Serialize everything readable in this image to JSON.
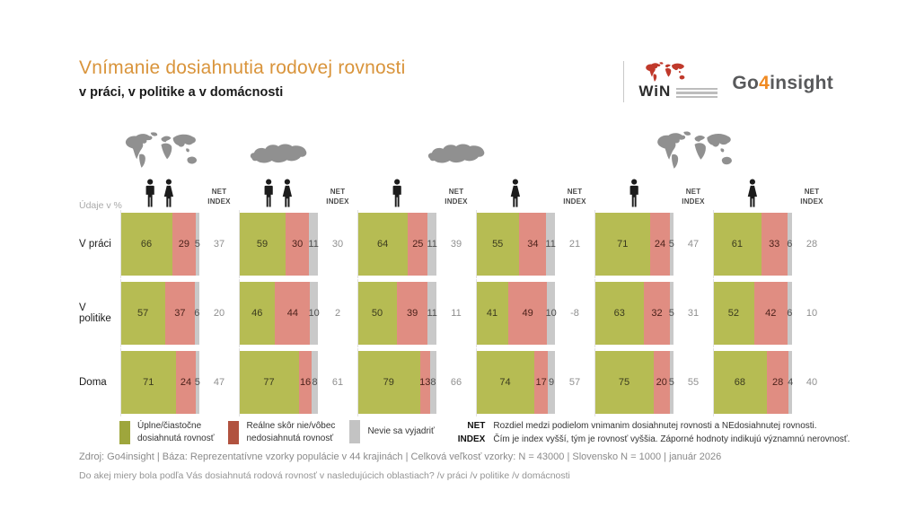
{
  "header": {
    "title": "Vnímanie dosiahnutia rodovej rovnosti",
    "subtitle": "v práci, v politike a v domácnosti",
    "win_logo_text": "WiN",
    "go4insight": {
      "go": "Go",
      "four": "4",
      "insight": "insight"
    }
  },
  "chart_data": {
    "type": "bar",
    "variant": "horizontal_stacked_small_multiples",
    "units_note": "Údaje v %",
    "value_unit": "%",
    "xlim": [
      0,
      100
    ],
    "net_index_header": {
      "line1": "NET",
      "line2": "INDEX"
    },
    "categories": [
      "V práci",
      "V politike",
      "Doma"
    ],
    "series": [
      "Úplne/čiastočne dosiahnutá rovnosť",
      "Reálne skôr nie/vôbec nedosiahnutá rovnosť",
      "Nevie sa vyjadriť"
    ],
    "maps": [
      {
        "icon": "world-map",
        "columns": [
          0
        ]
      },
      {
        "icon": "slovakia-map",
        "columns": [
          1
        ]
      },
      {
        "icon": "slovakia-map",
        "columns": [
          2,
          3
        ]
      },
      {
        "icon": "world-map",
        "columns": [
          4,
          5
        ]
      }
    ],
    "groups": [
      {
        "id": "world-total",
        "region": "world",
        "icons": [
          "man",
          "woman"
        ],
        "rows": [
          {
            "achieved": 66,
            "not_achieved": 29,
            "no_answer": 5,
            "net": 37
          },
          {
            "achieved": 57,
            "not_achieved": 37,
            "no_answer": 6,
            "net": 20
          },
          {
            "achieved": 71,
            "not_achieved": 24,
            "no_answer": 5,
            "net": 47
          }
        ]
      },
      {
        "id": "slovakia-total",
        "region": "slovakia",
        "icons": [
          "man",
          "woman"
        ],
        "rows": [
          {
            "achieved": 59,
            "not_achieved": 30,
            "no_answer": 11,
            "net": 30
          },
          {
            "achieved": 46,
            "not_achieved": 44,
            "no_answer": 10,
            "net": 2
          },
          {
            "achieved": 77,
            "not_achieved": 16,
            "no_answer": 8,
            "net": 61
          }
        ]
      },
      {
        "id": "slovakia-men",
        "region": "slovakia",
        "icons": [
          "man"
        ],
        "rows": [
          {
            "achieved": 64,
            "not_achieved": 25,
            "no_answer": 11,
            "net": 39
          },
          {
            "achieved": 50,
            "not_achieved": 39,
            "no_answer": 11,
            "net": 11
          },
          {
            "achieved": 79,
            "not_achieved": 13,
            "no_answer": 8,
            "net": 66
          }
        ]
      },
      {
        "id": "slovakia-women",
        "region": "slovakia",
        "icons": [
          "woman"
        ],
        "rows": [
          {
            "achieved": 55,
            "not_achieved": 34,
            "no_answer": 11,
            "net": 21
          },
          {
            "achieved": 41,
            "not_achieved": 49,
            "no_answer": 10,
            "net": -8
          },
          {
            "achieved": 74,
            "not_achieved": 17,
            "no_answer": 9,
            "net": 57
          }
        ]
      },
      {
        "id": "world-men",
        "region": "world",
        "icons": [
          "man"
        ],
        "rows": [
          {
            "achieved": 71,
            "not_achieved": 24,
            "no_answer": 5,
            "net": 47
          },
          {
            "achieved": 63,
            "not_achieved": 32,
            "no_answer": 5,
            "net": 31
          },
          {
            "achieved": 75,
            "not_achieved": 20,
            "no_answer": 5,
            "net": 55
          }
        ]
      },
      {
        "id": "world-women",
        "region": "world",
        "icons": [
          "woman"
        ],
        "rows": [
          {
            "achieved": 61,
            "not_achieved": 33,
            "no_answer": 6,
            "net": 28
          },
          {
            "achieved": 52,
            "not_achieved": 42,
            "no_answer": 6,
            "net": 10
          },
          {
            "achieved": 68,
            "not_achieved": 28,
            "no_answer": 4,
            "net": 40
          }
        ]
      }
    ]
  },
  "legend": {
    "items": [
      {
        "swatch": "#9ea63c",
        "line1": "Úplne/čiastočne",
        "line2": "dosiahnutá rovnosť"
      },
      {
        "swatch": "#b1523f",
        "line1": "Reálne skôr nie/vôbec",
        "line2": "nedosiahnutá rovnosť"
      },
      {
        "swatch": "#c3c3c3",
        "line1": "Nevie sa vyjadriť",
        "line2": ""
      }
    ],
    "net_index": {
      "line1": "NET",
      "line2": "INDEX",
      "desc_line1": "Rozdiel medzi podielom vnimanim dosiahnutej rovnosti a NEdosiahnutej rovnosti.",
      "desc_line2": "Čím je index vyšší, tým je rovnosť vyššia. Záporné hodnoty indikujú významnú nerovnosť."
    }
  },
  "footer": {
    "source": "Zdroj: Go4insight | Báza: Reprezentatívne vzorky populácie v 44 krajinách | Celková veľkosť vzorky: N = 43000 | Slovensko N = 1000 | január 2026",
    "question": "Do akej miery bola podľa Vás dosiahnutá rodová rovnosť v nasledujúcich oblastiach? /v práci /v politike /v domácnosti"
  },
  "colors": {
    "bar_achieved": "#b6bc53",
    "bar_not_achieved": "#e08d82",
    "bar_no_answer": "#c9c9c9",
    "title_accent": "#d9943b",
    "go4insight_orange": "#f08a22",
    "win_red": "#c0392b",
    "map_gray": "#909090",
    "net_text": "#8f8f8f"
  }
}
